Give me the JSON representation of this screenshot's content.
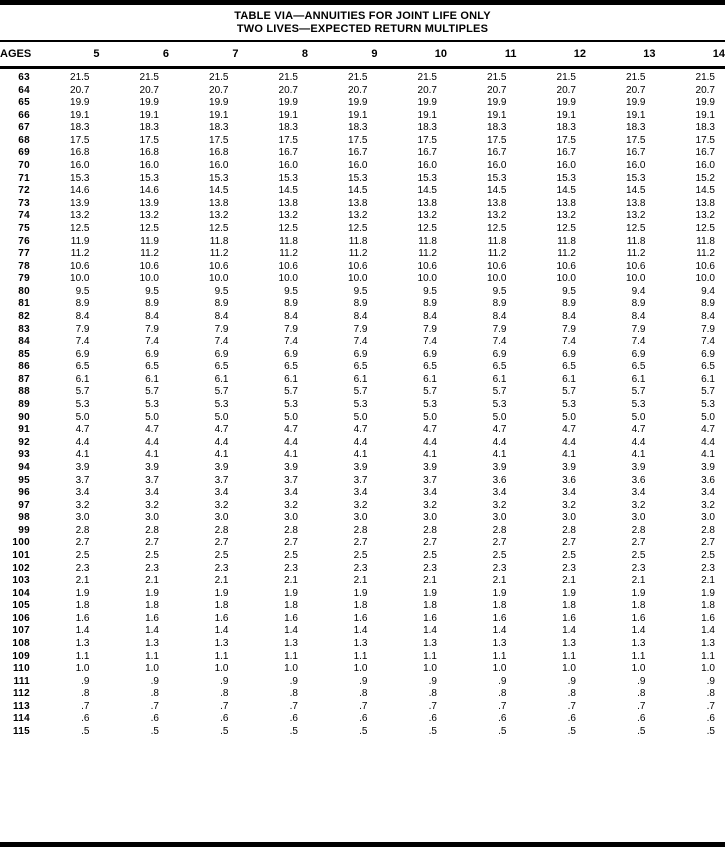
{
  "title": {
    "line1": "TABLE VIA—ANNUITIES FOR JOINT LIFE ONLY",
    "line2": "TWO LIVES—EXPECTED RETURN MULTIPLES"
  },
  "colors": {
    "text": "#000000",
    "background": "#ffffff",
    "rules": "#000000"
  },
  "table": {
    "age_header": "AGES",
    "columns": [
      "5",
      "6",
      "7",
      "8",
      "9",
      "10",
      "11",
      "12",
      "13",
      "14"
    ],
    "rows": [
      {
        "age": "63",
        "values": [
          "21.5",
          "21.5",
          "21.5",
          "21.5",
          "21.5",
          "21.5",
          "21.5",
          "21.5",
          "21.5",
          "21.5"
        ]
      },
      {
        "age": "64",
        "values": [
          "20.7",
          "20.7",
          "20.7",
          "20.7",
          "20.7",
          "20.7",
          "20.7",
          "20.7",
          "20.7",
          "20.7"
        ]
      },
      {
        "age": "65",
        "values": [
          "19.9",
          "19.9",
          "19.9",
          "19.9",
          "19.9",
          "19.9",
          "19.9",
          "19.9",
          "19.9",
          "19.9"
        ]
      },
      {
        "age": "66",
        "values": [
          "19.1",
          "19.1",
          "19.1",
          "19.1",
          "19.1",
          "19.1",
          "19.1",
          "19.1",
          "19.1",
          "19.1"
        ]
      },
      {
        "age": "67",
        "values": [
          "18.3",
          "18.3",
          "18.3",
          "18.3",
          "18.3",
          "18.3",
          "18.3",
          "18.3",
          "18.3",
          "18.3"
        ]
      },
      {
        "age": "68",
        "values": [
          "17.5",
          "17.5",
          "17.5",
          "17.5",
          "17.5",
          "17.5",
          "17.5",
          "17.5",
          "17.5",
          "17.5"
        ]
      },
      {
        "age": "69",
        "values": [
          "16.8",
          "16.8",
          "16.8",
          "16.7",
          "16.7",
          "16.7",
          "16.7",
          "16.7",
          "16.7",
          "16.7"
        ]
      },
      {
        "age": "70",
        "values": [
          "16.0",
          "16.0",
          "16.0",
          "16.0",
          "16.0",
          "16.0",
          "16.0",
          "16.0",
          "16.0",
          "16.0"
        ]
      },
      {
        "age": "71",
        "values": [
          "15.3",
          "15.3",
          "15.3",
          "15.3",
          "15.3",
          "15.3",
          "15.3",
          "15.3",
          "15.3",
          "15.2"
        ]
      },
      {
        "age": "72",
        "values": [
          "14.6",
          "14.6",
          "14.5",
          "14.5",
          "14.5",
          "14.5",
          "14.5",
          "14.5",
          "14.5",
          "14.5"
        ]
      },
      {
        "age": "73",
        "values": [
          "13.9",
          "13.9",
          "13.8",
          "13.8",
          "13.8",
          "13.8",
          "13.8",
          "13.8",
          "13.8",
          "13.8"
        ]
      },
      {
        "age": "74",
        "values": [
          "13.2",
          "13.2",
          "13.2",
          "13.2",
          "13.2",
          "13.2",
          "13.2",
          "13.2",
          "13.2",
          "13.2"
        ]
      },
      {
        "age": "75",
        "values": [
          "12.5",
          "12.5",
          "12.5",
          "12.5",
          "12.5",
          "12.5",
          "12.5",
          "12.5",
          "12.5",
          "12.5"
        ]
      },
      {
        "age": "76",
        "values": [
          "11.9",
          "11.9",
          "11.8",
          "11.8",
          "11.8",
          "11.8",
          "11.8",
          "11.8",
          "11.8",
          "11.8"
        ]
      },
      {
        "age": "77",
        "values": [
          "11.2",
          "11.2",
          "11.2",
          "11.2",
          "11.2",
          "11.2",
          "11.2",
          "11.2",
          "11.2",
          "11.2"
        ]
      },
      {
        "age": "78",
        "values": [
          "10.6",
          "10.6",
          "10.6",
          "10.6",
          "10.6",
          "10.6",
          "10.6",
          "10.6",
          "10.6",
          "10.6"
        ]
      },
      {
        "age": "79",
        "values": [
          "10.0",
          "10.0",
          "10.0",
          "10.0",
          "10.0",
          "10.0",
          "10.0",
          "10.0",
          "10.0",
          "10.0"
        ]
      },
      {
        "age": "80",
        "values": [
          "9.5",
          "9.5",
          "9.5",
          "9.5",
          "9.5",
          "9.5",
          "9.5",
          "9.5",
          "9.4",
          "9.4"
        ]
      },
      {
        "age": "81",
        "values": [
          "8.9",
          "8.9",
          "8.9",
          "8.9",
          "8.9",
          "8.9",
          "8.9",
          "8.9",
          "8.9",
          "8.9"
        ]
      },
      {
        "age": "82",
        "values": [
          "8.4",
          "8.4",
          "8.4",
          "8.4",
          "8.4",
          "8.4",
          "8.4",
          "8.4",
          "8.4",
          "8.4"
        ]
      },
      {
        "age": "83",
        "values": [
          "7.9",
          "7.9",
          "7.9",
          "7.9",
          "7.9",
          "7.9",
          "7.9",
          "7.9",
          "7.9",
          "7.9"
        ]
      },
      {
        "age": "84",
        "values": [
          "7.4",
          "7.4",
          "7.4",
          "7.4",
          "7.4",
          "7.4",
          "7.4",
          "7.4",
          "7.4",
          "7.4"
        ]
      },
      {
        "age": "85",
        "values": [
          "6.9",
          "6.9",
          "6.9",
          "6.9",
          "6.9",
          "6.9",
          "6.9",
          "6.9",
          "6.9",
          "6.9"
        ]
      },
      {
        "age": "86",
        "values": [
          "6.5",
          "6.5",
          "6.5",
          "6.5",
          "6.5",
          "6.5",
          "6.5",
          "6.5",
          "6.5",
          "6.5"
        ]
      },
      {
        "age": "87",
        "values": [
          "6.1",
          "6.1",
          "6.1",
          "6.1",
          "6.1",
          "6.1",
          "6.1",
          "6.1",
          "6.1",
          "6.1"
        ]
      },
      {
        "age": "88",
        "values": [
          "5.7",
          "5.7",
          "5.7",
          "5.7",
          "5.7",
          "5.7",
          "5.7",
          "5.7",
          "5.7",
          "5.7"
        ]
      },
      {
        "age": "89",
        "values": [
          "5.3",
          "5.3",
          "5.3",
          "5.3",
          "5.3",
          "5.3",
          "5.3",
          "5.3",
          "5.3",
          "5.3"
        ]
      },
      {
        "age": "90",
        "values": [
          "5.0",
          "5.0",
          "5.0",
          "5.0",
          "5.0",
          "5.0",
          "5.0",
          "5.0",
          "5.0",
          "5.0"
        ]
      },
      {
        "age": "91",
        "values": [
          "4.7",
          "4.7",
          "4.7",
          "4.7",
          "4.7",
          "4.7",
          "4.7",
          "4.7",
          "4.7",
          "4.7"
        ]
      },
      {
        "age": "92",
        "values": [
          "4.4",
          "4.4",
          "4.4",
          "4.4",
          "4.4",
          "4.4",
          "4.4",
          "4.4",
          "4.4",
          "4.4"
        ]
      },
      {
        "age": "93",
        "values": [
          "4.1",
          "4.1",
          "4.1",
          "4.1",
          "4.1",
          "4.1",
          "4.1",
          "4.1",
          "4.1",
          "4.1"
        ]
      },
      {
        "age": "94",
        "values": [
          "3.9",
          "3.9",
          "3.9",
          "3.9",
          "3.9",
          "3.9",
          "3.9",
          "3.9",
          "3.9",
          "3.9"
        ]
      },
      {
        "age": "95",
        "values": [
          "3.7",
          "3.7",
          "3.7",
          "3.7",
          "3.7",
          "3.7",
          "3.6",
          "3.6",
          "3.6",
          "3.6"
        ]
      },
      {
        "age": "96",
        "values": [
          "3.4",
          "3.4",
          "3.4",
          "3.4",
          "3.4",
          "3.4",
          "3.4",
          "3.4",
          "3.4",
          "3.4"
        ]
      },
      {
        "age": "97",
        "values": [
          "3.2",
          "3.2",
          "3.2",
          "3.2",
          "3.2",
          "3.2",
          "3.2",
          "3.2",
          "3.2",
          "3.2"
        ]
      },
      {
        "age": "98",
        "values": [
          "3.0",
          "3.0",
          "3.0",
          "3.0",
          "3.0",
          "3.0",
          "3.0",
          "3.0",
          "3.0",
          "3.0"
        ]
      },
      {
        "age": "99",
        "values": [
          "2.8",
          "2.8",
          "2.8",
          "2.8",
          "2.8",
          "2.8",
          "2.8",
          "2.8",
          "2.8",
          "2.8"
        ]
      },
      {
        "age": "100",
        "values": [
          "2.7",
          "2.7",
          "2.7",
          "2.7",
          "2.7",
          "2.7",
          "2.7",
          "2.7",
          "2.7",
          "2.7"
        ]
      },
      {
        "age": "101",
        "values": [
          "2.5",
          "2.5",
          "2.5",
          "2.5",
          "2.5",
          "2.5",
          "2.5",
          "2.5",
          "2.5",
          "2.5"
        ]
      },
      {
        "age": "102",
        "values": [
          "2.3",
          "2.3",
          "2.3",
          "2.3",
          "2.3",
          "2.3",
          "2.3",
          "2.3",
          "2.3",
          "2.3"
        ]
      },
      {
        "age": "103",
        "values": [
          "2.1",
          "2.1",
          "2.1",
          "2.1",
          "2.1",
          "2.1",
          "2.1",
          "2.1",
          "2.1",
          "2.1"
        ]
      },
      {
        "age": "104",
        "values": [
          "1.9",
          "1.9",
          "1.9",
          "1.9",
          "1.9",
          "1.9",
          "1.9",
          "1.9",
          "1.9",
          "1.9"
        ]
      },
      {
        "age": "105",
        "values": [
          "1.8",
          "1.8",
          "1.8",
          "1.8",
          "1.8",
          "1.8",
          "1.8",
          "1.8",
          "1.8",
          "1.8"
        ]
      },
      {
        "age": "106",
        "values": [
          "1.6",
          "1.6",
          "1.6",
          "1.6",
          "1.6",
          "1.6",
          "1.6",
          "1.6",
          "1.6",
          "1.6"
        ]
      },
      {
        "age": "107",
        "values": [
          "1.4",
          "1.4",
          "1.4",
          "1.4",
          "1.4",
          "1.4",
          "1.4",
          "1.4",
          "1.4",
          "1.4"
        ]
      },
      {
        "age": "108",
        "values": [
          "1.3",
          "1.3",
          "1.3",
          "1.3",
          "1.3",
          "1.3",
          "1.3",
          "1.3",
          "1.3",
          "1.3"
        ]
      },
      {
        "age": "109",
        "values": [
          "1.1",
          "1.1",
          "1.1",
          "1.1",
          "1.1",
          "1.1",
          "1.1",
          "1.1",
          "1.1",
          "1.1"
        ]
      },
      {
        "age": "110",
        "values": [
          "1.0",
          "1.0",
          "1.0",
          "1.0",
          "1.0",
          "1.0",
          "1.0",
          "1.0",
          "1.0",
          "1.0"
        ]
      },
      {
        "age": "111",
        "values": [
          ".9",
          ".9",
          ".9",
          ".9",
          ".9",
          ".9",
          ".9",
          ".9",
          ".9",
          ".9"
        ]
      },
      {
        "age": "112",
        "values": [
          ".8",
          ".8",
          ".8",
          ".8",
          ".8",
          ".8",
          ".8",
          ".8",
          ".8",
          ".8"
        ]
      },
      {
        "age": "113",
        "values": [
          ".7",
          ".7",
          ".7",
          ".7",
          ".7",
          ".7",
          ".7",
          ".7",
          ".7",
          ".7"
        ]
      },
      {
        "age": "114",
        "values": [
          ".6",
          ".6",
          ".6",
          ".6",
          ".6",
          ".6",
          ".6",
          ".6",
          ".6",
          ".6"
        ]
      },
      {
        "age": "115",
        "values": [
          ".5",
          ".5",
          ".5",
          ".5",
          ".5",
          ".5",
          ".5",
          ".5",
          ".5",
          ".5"
        ]
      }
    ]
  }
}
